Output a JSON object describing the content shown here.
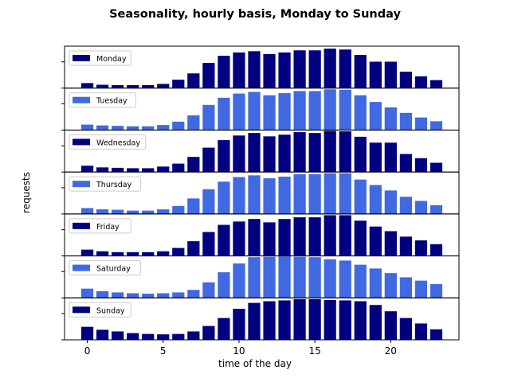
{
  "chart_data": {
    "type": "bar",
    "title": "Seasonality, hourly basis, Monday to Sunday",
    "xlabel": "time of the day",
    "ylabel": "requests",
    "x": [
      0,
      1,
      2,
      3,
      4,
      5,
      6,
      7,
      8,
      9,
      10,
      11,
      12,
      13,
      14,
      15,
      16,
      17,
      18,
      19,
      20,
      21,
      22,
      23
    ],
    "xlim": [
      -1.5,
      24.5
    ],
    "ylim": [
      0,
      1
    ],
    "xticks": [
      0,
      5,
      10,
      15,
      20
    ],
    "xtick_labels": [
      "0",
      "5",
      "10",
      "15",
      "20"
    ],
    "grid": false,
    "legend_position": "upper left",
    "colors": {
      "dark": "#000080",
      "light": "#4169e1"
    },
    "series": [
      {
        "name": "Monday",
        "color": "#000080",
        "values": [
          0.12,
          0.08,
          0.07,
          0.07,
          0.07,
          0.1,
          0.2,
          0.35,
          0.6,
          0.77,
          0.85,
          0.88,
          0.81,
          0.85,
          0.9,
          0.9,
          0.94,
          0.92,
          0.79,
          0.63,
          0.63,
          0.39,
          0.28,
          0.19
        ]
      },
      {
        "name": "Tuesday",
        "color": "#4169e1",
        "values": [
          0.13,
          0.11,
          0.1,
          0.09,
          0.09,
          0.12,
          0.2,
          0.35,
          0.6,
          0.77,
          0.87,
          0.91,
          0.83,
          0.88,
          0.93,
          0.93,
          0.97,
          0.96,
          0.83,
          0.67,
          0.54,
          0.41,
          0.3,
          0.21
        ]
      },
      {
        "name": "Wednesday",
        "color": "#000080",
        "values": [
          0.15,
          0.11,
          0.1,
          0.09,
          0.09,
          0.13,
          0.2,
          0.36,
          0.58,
          0.76,
          0.87,
          0.93,
          0.85,
          0.89,
          0.95,
          0.93,
          0.98,
          0.97,
          0.84,
          0.7,
          0.7,
          0.43,
          0.33,
          0.22
        ]
      },
      {
        "name": "Thursday",
        "color": "#4169e1",
        "values": [
          0.14,
          0.11,
          0.1,
          0.08,
          0.08,
          0.11,
          0.19,
          0.37,
          0.59,
          0.77,
          0.88,
          0.92,
          0.85,
          0.89,
          0.95,
          0.95,
          0.97,
          0.97,
          0.82,
          0.69,
          0.56,
          0.41,
          0.31,
          0.21
        ]
      },
      {
        "name": "Friday",
        "color": "#000080",
        "values": [
          0.15,
          0.11,
          0.09,
          0.09,
          0.09,
          0.11,
          0.19,
          0.35,
          0.57,
          0.74,
          0.82,
          0.88,
          0.8,
          0.88,
          0.92,
          0.92,
          0.97,
          0.97,
          0.84,
          0.7,
          0.59,
          0.46,
          0.37,
          0.28
        ]
      },
      {
        "name": "Saturday",
        "color": "#4169e1",
        "values": [
          0.22,
          0.16,
          0.13,
          0.11,
          0.1,
          0.11,
          0.13,
          0.19,
          0.37,
          0.61,
          0.82,
          0.97,
          0.98,
          0.99,
          0.98,
          0.97,
          0.92,
          0.89,
          0.79,
          0.7,
          0.59,
          0.49,
          0.41,
          0.33
        ]
      },
      {
        "name": "Sunday",
        "color": "#000080",
        "values": [
          0.31,
          0.24,
          0.2,
          0.16,
          0.14,
          0.13,
          0.14,
          0.2,
          0.33,
          0.52,
          0.74,
          0.88,
          0.92,
          0.94,
          0.97,
          0.97,
          0.95,
          0.94,
          0.92,
          0.83,
          0.68,
          0.52,
          0.39,
          0.25
        ]
      }
    ]
  }
}
